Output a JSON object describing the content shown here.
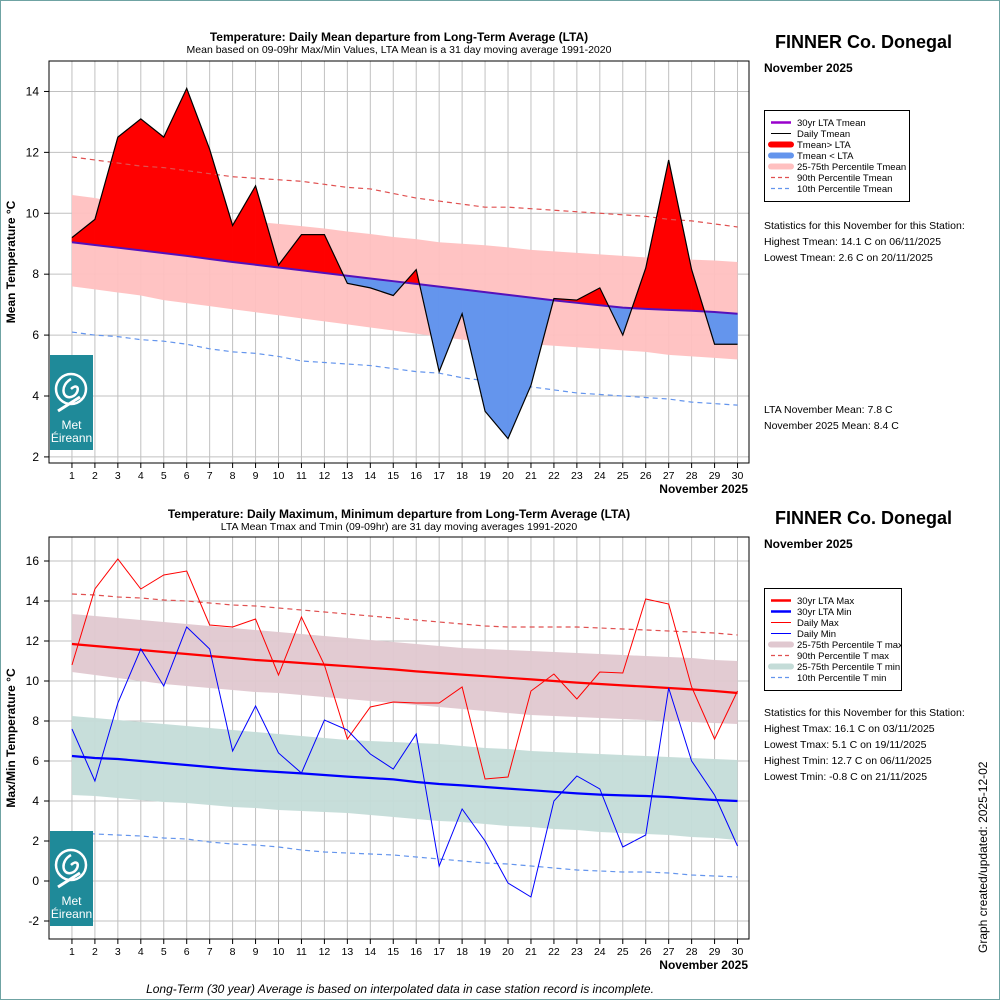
{
  "footer_note": "Long-Term (30 year) Average is based on interpolated data in case station record is incomplete.",
  "updated_label": "Graph created/updated:  2025-12-02",
  "logo": {
    "line1": "Met",
    "line2": "Éireann",
    "icon": "met-eireann-swirl-icon"
  },
  "top": {
    "station": "FINNER Co. Donegal",
    "month": "November 2025",
    "legend": [
      {
        "label": "30yr LTA Tmean",
        "style": "line",
        "color": "#9900cc"
      },
      {
        "label": "Daily Tmean",
        "style": "thin-line",
        "color": "#000000"
      },
      {
        "label": "Tmean> LTA",
        "style": "thick-fill",
        "color": "#ff0000"
      },
      {
        "label": "Tmean < LTA",
        "style": "thick-fill",
        "color": "#6495ed"
      },
      {
        "label": "25-75th Percentile Tmean",
        "style": "thick-fill",
        "color": "#ffc0c0"
      },
      {
        "label": "90th Percentile Tmean",
        "style": "dashed",
        "color": "#e05050"
      },
      {
        "label": "10th Percentile Tmean",
        "style": "dashed",
        "color": "#6495ed"
      }
    ],
    "stats_heading": "Statistics for this November for this Station:",
    "stats": [
      "Highest Tmean: 14.1 C on 06/11/2025",
      "Lowest Tmean: 2.6 C on 20/11/2025"
    ],
    "means": [
      "LTA November Mean: 7.8 C",
      "November 2025 Mean: 8.4 C"
    ]
  },
  "bottom": {
    "station": "FINNER Co. Donegal",
    "month": "November 2025",
    "legend": [
      {
        "label": "30yr LTA Max",
        "style": "line",
        "color": "#ff0000"
      },
      {
        "label": "30yr LTA Min",
        "style": "line",
        "color": "#0000ff"
      },
      {
        "label": "Daily Max",
        "style": "thin-line",
        "color": "#ff0000"
      },
      {
        "label": "Daily Min",
        "style": "thin-line",
        "color": "#0000ff"
      },
      {
        "label": "25-75th Percentile T max",
        "style": "thick-fill",
        "color": "#e0c8d0"
      },
      {
        "label": "90th Percentile T max",
        "style": "dashed",
        "color": "#e05050"
      },
      {
        "label": "25-75th Percentile T min",
        "style": "thick-fill",
        "color": "#c4dcd8"
      },
      {
        "label": "10th Percentile T min",
        "style": "dashed",
        "color": "#6495ed"
      }
    ],
    "stats_heading": "Statistics for this November for this Station:",
    "stats": [
      "Highest Tmax: 16.1 C on 03/11/2025",
      "Lowest Tmax: 5.1 C on 19/11/2025",
      "Highest Tmin: 12.7 C on 06/11/2025",
      "Lowest Tmin: -0.8 C on 21/11/2025"
    ]
  },
  "chart_data": [
    {
      "type": "area",
      "title": "Temperature: Daily Mean departure from Long-Term Average (LTA)",
      "subtitle": "Mean based on 09-09hr Max/Min Values, LTA Mean is a 31 day moving average 1991-2020",
      "ylabel": "Mean Temperature °C",
      "xlabel": "November 2025",
      "x": [
        1,
        2,
        3,
        4,
        5,
        6,
        7,
        8,
        9,
        10,
        11,
        12,
        13,
        14,
        15,
        16,
        17,
        18,
        19,
        20,
        21,
        22,
        23,
        24,
        25,
        26,
        27,
        28,
        29,
        30
      ],
      "ylim": [
        1.8,
        15.0
      ],
      "xlim": [
        0,
        30.5
      ],
      "yticks": [
        2,
        4,
        6,
        8,
        10,
        12,
        14
      ],
      "grid": true,
      "legend_position": "right, outside plot",
      "series": [
        {
          "name": "Daily Tmean",
          "color": "#000000",
          "values": [
            9.2,
            9.8,
            12.5,
            13.1,
            12.5,
            14.1,
            12.1,
            9.6,
            10.9,
            8.3,
            9.3,
            9.3,
            7.7,
            7.55,
            7.3,
            8.15,
            4.8,
            6.7,
            3.5,
            2.6,
            4.35,
            7.2,
            7.15,
            7.55,
            6.0,
            8.2,
            11.75,
            8.15,
            5.7,
            5.7
          ]
        },
        {
          "name": "30yr LTA Tmean",
          "color": "#9900cc",
          "values": [
            9.05,
            8.96,
            8.87,
            8.78,
            8.69,
            8.6,
            8.5,
            8.4,
            8.31,
            8.22,
            8.13,
            8.04,
            7.95,
            7.86,
            7.77,
            7.68,
            7.59,
            7.5,
            7.41,
            7.32,
            7.23,
            7.14,
            7.06,
            6.98,
            6.9,
            6.86,
            6.83,
            6.8,
            6.76,
            6.7
          ]
        },
        {
          "name": "25-75th Percentile Tmean",
          "color": "#ffc0c0",
          "upper": [
            10.6,
            10.5,
            10.35,
            10.25,
            10.1,
            10.0,
            9.9,
            9.8,
            9.72,
            9.65,
            9.58,
            9.5,
            9.4,
            9.32,
            9.22,
            9.15,
            9.05,
            9.0,
            8.95,
            8.88,
            8.8,
            8.75,
            8.7,
            8.65,
            8.6,
            8.55,
            8.5,
            8.48,
            8.45,
            8.4
          ],
          "lower": [
            7.6,
            7.5,
            7.4,
            7.3,
            7.15,
            7.05,
            6.95,
            6.85,
            6.75,
            6.65,
            6.55,
            6.45,
            6.35,
            6.25,
            6.15,
            6.05,
            5.95,
            5.85,
            5.8,
            5.75,
            5.7,
            5.65,
            5.6,
            5.55,
            5.5,
            5.45,
            5.35,
            5.3,
            5.25,
            5.2
          ]
        },
        {
          "name": "90th Percentile Tmean",
          "color": "#e05050",
          "values": [
            11.85,
            11.75,
            11.65,
            11.55,
            11.5,
            11.4,
            11.3,
            11.2,
            11.15,
            11.1,
            11.05,
            10.95,
            10.85,
            10.8,
            10.65,
            10.5,
            10.4,
            10.3,
            10.2,
            10.2,
            10.15,
            10.1,
            10.05,
            10.0,
            9.95,
            9.9,
            9.8,
            9.75,
            9.65,
            9.55
          ]
        },
        {
          "name": "10th Percentile Tmean",
          "color": "#6495ed",
          "values": [
            6.1,
            6.0,
            5.95,
            5.85,
            5.8,
            5.7,
            5.55,
            5.45,
            5.4,
            5.3,
            5.15,
            5.1,
            5.05,
            5.0,
            4.9,
            4.8,
            4.75,
            4.6,
            4.5,
            4.4,
            4.3,
            4.2,
            4.1,
            4.05,
            4.0,
            3.95,
            3.9,
            3.8,
            3.75,
            3.7
          ]
        }
      ]
    },
    {
      "type": "line",
      "title": "Temperature: Daily Maximum, Minimum departure from Long-Term Average (LTA)",
      "subtitle": "LTA Mean Tmax and Tmin (09-09hr) are 31 day moving averages 1991-2020",
      "ylabel": "Max/Min Temperature °C",
      "xlabel": "November 2025",
      "x": [
        1,
        2,
        3,
        4,
        5,
        6,
        7,
        8,
        9,
        10,
        11,
        12,
        13,
        14,
        15,
        16,
        17,
        18,
        19,
        20,
        21,
        22,
        23,
        24,
        25,
        26,
        27,
        28,
        29,
        30
      ],
      "ylim": [
        -2.9,
        17.2
      ],
      "xlim": [
        0,
        30.5
      ],
      "yticks": [
        -2,
        0,
        2,
        4,
        6,
        8,
        10,
        12,
        14,
        16
      ],
      "grid": true,
      "legend_position": "right, outside plot",
      "series": [
        {
          "name": "Daily Max",
          "color": "#ff0000",
          "values": [
            10.8,
            14.6,
            16.1,
            14.6,
            15.3,
            15.5,
            12.8,
            12.7,
            13.1,
            10.3,
            13.2,
            10.8,
            7.1,
            8.7,
            8.95,
            8.9,
            8.9,
            9.7,
            5.1,
            5.2,
            9.5,
            10.35,
            9.1,
            10.45,
            10.4,
            14.1,
            13.85,
            9.7,
            7.1,
            9.5
          ]
        },
        {
          "name": "Daily Min",
          "color": "#0000ff",
          "values": [
            7.6,
            5.0,
            8.9,
            11.6,
            9.75,
            12.7,
            11.6,
            6.5,
            8.75,
            6.4,
            5.4,
            8.05,
            7.55,
            6.35,
            5.6,
            7.35,
            0.75,
            3.6,
            2.0,
            -0.1,
            -0.8,
            4.0,
            5.25,
            4.6,
            1.7,
            2.3,
            9.65,
            6.0,
            4.3,
            1.75
          ]
        },
        {
          "name": "30yr LTA Max",
          "color": "#ff0000",
          "values": [
            11.85,
            11.75,
            11.65,
            11.55,
            11.45,
            11.35,
            11.25,
            11.15,
            11.05,
            10.98,
            10.9,
            10.82,
            10.74,
            10.66,
            10.58,
            10.48,
            10.4,
            10.32,
            10.24,
            10.16,
            10.08,
            10.0,
            9.92,
            9.85,
            9.78,
            9.72,
            9.65,
            9.58,
            9.5,
            9.4
          ]
        },
        {
          "name": "30yr LTA Min",
          "color": "#0000ff",
          "values": [
            6.25,
            6.15,
            6.1,
            6.0,
            5.9,
            5.8,
            5.7,
            5.6,
            5.52,
            5.45,
            5.38,
            5.3,
            5.22,
            5.15,
            5.08,
            4.95,
            4.85,
            4.78,
            4.7,
            4.62,
            4.54,
            4.46,
            4.38,
            4.32,
            4.28,
            4.25,
            4.2,
            4.12,
            4.05,
            4.0
          ]
        },
        {
          "name": "25-75th Percentile T max",
          "color": "#e0c8d0",
          "upper": [
            13.35,
            13.25,
            13.15,
            13.05,
            12.95,
            12.85,
            12.75,
            12.65,
            12.55,
            12.45,
            12.35,
            12.25,
            12.15,
            12.05,
            11.95,
            11.85,
            11.75,
            11.65,
            11.6,
            11.55,
            11.5,
            11.45,
            11.4,
            11.35,
            11.3,
            11.25,
            11.2,
            11.15,
            11.05,
            11.0
          ],
          "lower": [
            10.45,
            10.3,
            10.15,
            10.0,
            9.85,
            9.75,
            9.65,
            9.55,
            9.45,
            9.4,
            9.3,
            9.2,
            9.1,
            9.0,
            8.9,
            8.8,
            8.7,
            8.6,
            8.5,
            8.4,
            8.3,
            8.25,
            8.2,
            8.15,
            8.1,
            8.05,
            8.0,
            7.95,
            7.9,
            7.85
          ]
        },
        {
          "name": "90th Percentile T max",
          "color": "#e05050",
          "values": [
            14.35,
            14.3,
            14.2,
            14.15,
            14.05,
            14.0,
            13.9,
            13.8,
            13.75,
            13.65,
            13.55,
            13.45,
            13.35,
            13.25,
            13.15,
            13.05,
            12.95,
            12.85,
            12.75,
            12.7,
            12.7,
            12.7,
            12.7,
            12.65,
            12.6,
            12.55,
            12.5,
            12.45,
            12.4,
            12.3
          ]
        },
        {
          "name": "25-75th Percentile T min",
          "color": "#c4dcd8",
          "upper": [
            8.25,
            8.15,
            8.05,
            7.95,
            7.85,
            7.75,
            7.65,
            7.55,
            7.45,
            7.35,
            7.25,
            7.15,
            7.05,
            7.0,
            6.95,
            6.9,
            6.85,
            6.75,
            6.65,
            6.6,
            6.5,
            6.45,
            6.4,
            6.35,
            6.3,
            6.25,
            6.2,
            6.15,
            6.1,
            6.05
          ],
          "lower": [
            4.3,
            4.25,
            4.15,
            4.05,
            3.95,
            3.9,
            3.8,
            3.7,
            3.65,
            3.55,
            3.5,
            3.45,
            3.4,
            3.3,
            3.2,
            3.1,
            3.0,
            2.95,
            2.85,
            2.75,
            2.7,
            2.6,
            2.55,
            2.45,
            2.4,
            2.35,
            2.3,
            2.2,
            2.15,
            2.05
          ]
        },
        {
          "name": "10th Percentile T min",
          "color": "#6495ed",
          "values": [
            2.45,
            2.35,
            2.3,
            2.25,
            2.15,
            2.1,
            1.95,
            1.85,
            1.8,
            1.7,
            1.55,
            1.45,
            1.4,
            1.35,
            1.3,
            1.2,
            1.1,
            1.0,
            0.9,
            0.85,
            0.75,
            0.65,
            0.55,
            0.5,
            0.45,
            0.45,
            0.4,
            0.3,
            0.25,
            0.2
          ]
        }
      ]
    }
  ]
}
